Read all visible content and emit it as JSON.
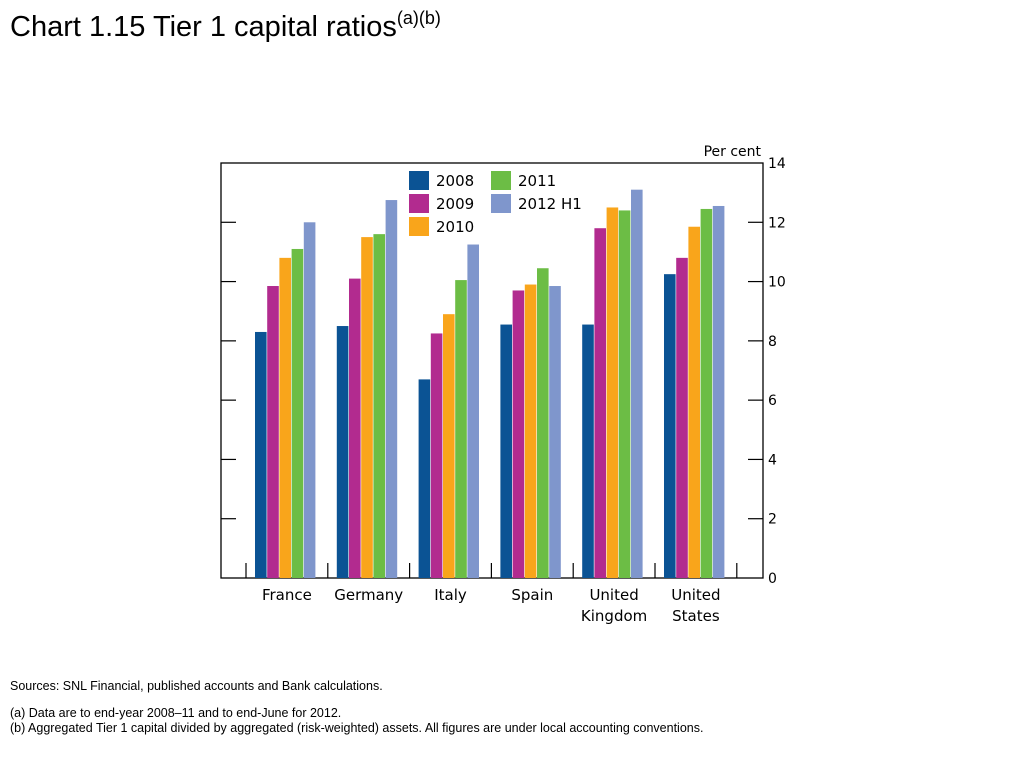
{
  "header": {
    "title": "Chart 1.15  Tier 1 capital ratios",
    "title_notes": "(a)(b)"
  },
  "footer": {
    "sources": "Sources:  SNL Financial, published accounts and Bank calculations.",
    "note_a": "(a)  Data are to end-year 2008–11 and to end-June for 2012.",
    "note_b": "(b)  Aggregated Tier 1 capital divided by aggregated (risk-weighted) assets.  All figures are under local accounting conventions."
  },
  "chart_data": {
    "type": "bar",
    "title": "Chart 1.15  Tier 1 capital ratios",
    "ylabel": "Per cent",
    "ylim": [
      0,
      14
    ],
    "yticks": [
      0,
      2,
      4,
      6,
      8,
      10,
      12,
      14
    ],
    "y_axis_side": "right",
    "grid": false,
    "legend_position": "top-center",
    "categories": [
      [
        "France"
      ],
      [
        "Germany"
      ],
      [
        "Italy"
      ],
      [
        "Spain"
      ],
      [
        "United",
        "Kingdom"
      ],
      [
        "United",
        "States"
      ]
    ],
    "series": [
      {
        "name": "2008",
        "color": "#0b5394",
        "values": [
          8.3,
          8.5,
          6.7,
          8.55,
          8.55,
          10.25
        ]
      },
      {
        "name": "2009",
        "color": "#b22b8f",
        "values": [
          9.85,
          10.1,
          8.25,
          9.7,
          11.8,
          10.8
        ]
      },
      {
        "name": "2010",
        "color": "#f9a51b",
        "values": [
          10.8,
          11.5,
          8.9,
          9.9,
          12.5,
          11.85
        ]
      },
      {
        "name": "2011",
        "color": "#6cbd45",
        "values": [
          11.1,
          11.6,
          10.05,
          10.45,
          12.4,
          12.45
        ]
      },
      {
        "name": "2012 H1",
        "color": "#7f96cc",
        "values": [
          12.0,
          12.75,
          11.25,
          9.85,
          13.1,
          12.55
        ]
      }
    ]
  }
}
